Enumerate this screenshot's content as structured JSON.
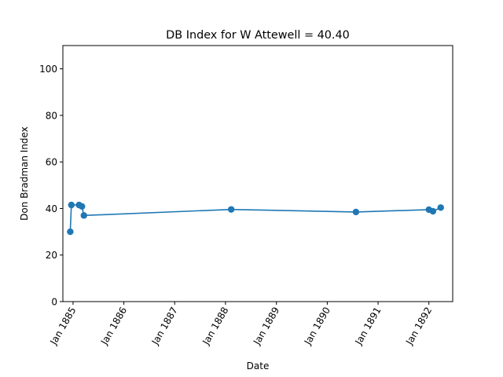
{
  "chart_data": {
    "type": "line",
    "title": "DB Index for W Attewell = 40.40",
    "xlabel": "Date",
    "ylabel": "Don Bradman Index",
    "xlim": [
      "1884-10-20",
      "1892-06-20"
    ],
    "ylim": [
      0,
      110
    ],
    "yticks": [
      0,
      20,
      40,
      60,
      80,
      100
    ],
    "xticks": [
      {
        "date": "1885-01-01",
        "label": "Jan 1885"
      },
      {
        "date": "1886-01-01",
        "label": "Jan 1886"
      },
      {
        "date": "1887-01-01",
        "label": "Jan 1887"
      },
      {
        "date": "1888-01-01",
        "label": "Jan 1888"
      },
      {
        "date": "1889-01-01",
        "label": "Jan 1889"
      },
      {
        "date": "1890-01-01",
        "label": "Jan 1890"
      },
      {
        "date": "1891-01-01",
        "label": "Jan 1891"
      },
      {
        "date": "1892-01-01",
        "label": "Jan 1892"
      }
    ],
    "grid": false,
    "marker": "circle",
    "line_color": "#1f77b4",
    "series": [
      {
        "x": [
          "1884-12-12",
          "1884-12-20",
          "1885-02-13",
          "1885-03-06",
          "1885-03-20",
          "1888-02-11",
          "1890-07-26",
          "1892-01-01",
          "1892-01-30",
          "1892-03-26"
        ],
        "values": [
          30.0,
          41.5,
          41.5,
          40.9,
          37.0,
          39.6,
          38.5,
          39.5,
          38.8,
          40.4
        ]
      }
    ]
  }
}
